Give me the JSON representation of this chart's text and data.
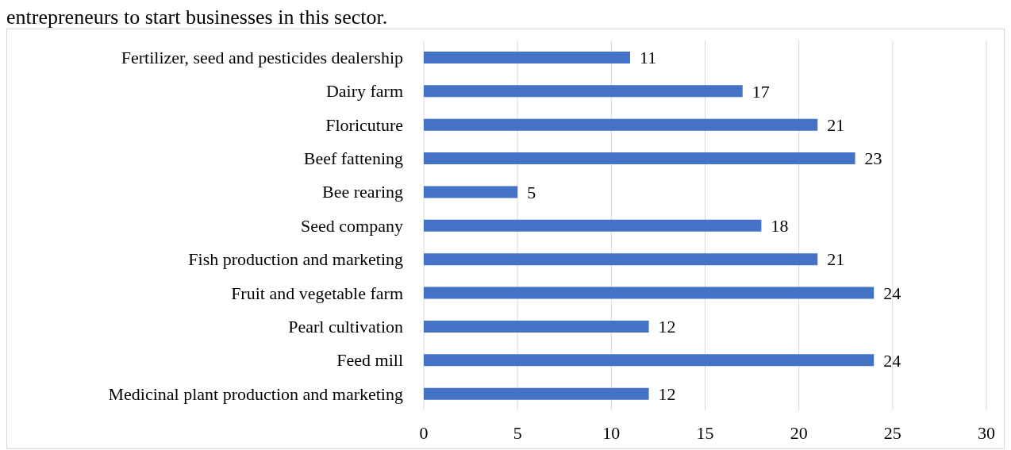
{
  "chart_data": {
    "type": "bar",
    "orientation": "horizontal",
    "annotations": [
      "entrepreneurs to start businesses in this sector."
    ],
    "categories": [
      "Fertilizer, seed and pesticides dealership",
      "Dairy farm",
      "Floricuture",
      "Beef fattening",
      "Bee rearing",
      "Seed company",
      "Fish production and marketing",
      "Fruit and vegetable farm",
      "Pearl cultivation",
      "Feed mill",
      "Medicinal plant production and marketing"
    ],
    "values": [
      11,
      17,
      21,
      23,
      5,
      18,
      21,
      24,
      12,
      24,
      12
    ],
    "color": "#4472c4",
    "xlim": [
      0,
      30
    ],
    "xticks": [
      0,
      5,
      10,
      15,
      20,
      25,
      30
    ],
    "grid": "x",
    "data_labels": true,
    "legend": false
  }
}
